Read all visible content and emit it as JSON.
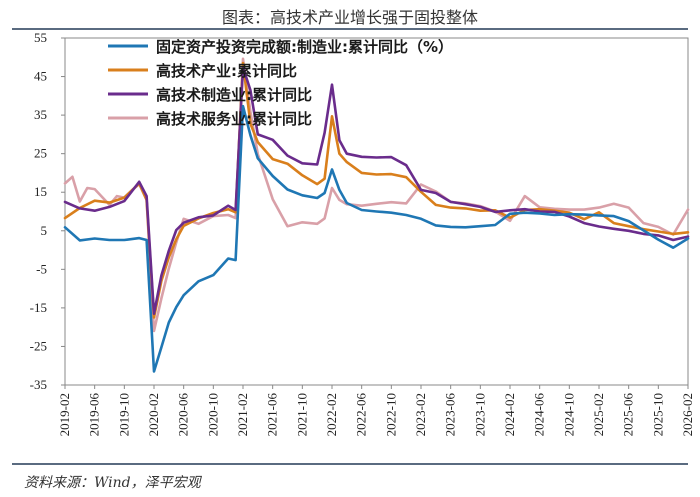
{
  "header": {
    "title": "图表：高技术产业增长强于固投整体"
  },
  "footer": {
    "source": "资料来源：Wind，泽平宏观"
  },
  "chart_data": {
    "type": "line",
    "ylim": [
      -35,
      55
    ],
    "yticks": [
      55,
      45,
      35,
      25,
      15,
      5,
      -5,
      -15,
      -25,
      -35
    ],
    "xlim": [
      "2019-02",
      "2026-02"
    ],
    "xticks": [
      "2019-02",
      "2019-06",
      "2019-10",
      "2020-02",
      "2020-06",
      "2020-10",
      "2021-02",
      "2021-06",
      "2021-10",
      "2022-02",
      "2022-06",
      "2022-10",
      "2023-02",
      "2023-06",
      "2023-10",
      "2024-02",
      "2024-06",
      "2024-10",
      "2025-02",
      "2025-06",
      "2025-10",
      "2026-02"
    ],
    "legend_position": "top-left",
    "grid": false,
    "series": [
      {
        "name": "固定资产投资完成额:制造业:累计同比（%）",
        "color": "#1f77b4",
        "x": [
          "2019-02",
          "2019-04",
          "2019-06",
          "2019-08",
          "2019-10",
          "2019-12",
          "2020-01",
          "2020-02",
          "2020-03",
          "2020-04",
          "2020-05",
          "2020-06",
          "2020-08",
          "2020-10",
          "2020-12",
          "2021-01",
          "2021-02",
          "2021-03",
          "2021-04",
          "2021-06",
          "2021-08",
          "2021-10",
          "2021-12",
          "2022-01",
          "2022-02",
          "2022-03",
          "2022-04",
          "2022-06",
          "2022-08",
          "2022-10",
          "2022-12",
          "2023-02",
          "2023-04",
          "2023-06",
          "2023-08",
          "2023-10",
          "2023-12",
          "2024-02",
          "2024-04",
          "2024-06",
          "2024-08",
          "2024-10",
          "2024-12",
          "2025-02",
          "2025-04",
          "2025-06",
          "2025-08",
          "2025-10",
          "2025-12",
          "2026-02"
        ],
        "values": [
          5.9,
          2.5,
          3.0,
          2.6,
          2.6,
          3.1,
          2.6,
          -31.5,
          -25.2,
          -18.8,
          -14.8,
          -11.7,
          -8.1,
          -6.5,
          -2.2,
          -2.6,
          37.3,
          29.8,
          23.8,
          19.2,
          15.7,
          14.2,
          13.5,
          14.8,
          20.9,
          15.6,
          12.2,
          10.4,
          10.0,
          9.7,
          9.1,
          8.1,
          6.4,
          6.0,
          5.9,
          6.2,
          6.5,
          9.4,
          9.7,
          9.5,
          9.1,
          9.3,
          9.2,
          9.0,
          8.8,
          7.5,
          5.1,
          2.7,
          0.6,
          3.0
        ]
      },
      {
        "name": "高技术产业:累计同比",
        "color": "#d97f1c",
        "x": [
          "2019-02",
          "2019-04",
          "2019-06",
          "2019-08",
          "2019-10",
          "2019-12",
          "2020-01",
          "2020-02",
          "2020-03",
          "2020-04",
          "2020-05",
          "2020-06",
          "2020-08",
          "2020-10",
          "2020-12",
          "2021-01",
          "2021-02",
          "2021-03",
          "2021-04",
          "2021-06",
          "2021-08",
          "2021-10",
          "2021-12",
          "2022-01",
          "2022-02",
          "2022-03",
          "2022-04",
          "2022-06",
          "2022-08",
          "2022-10",
          "2022-12",
          "2023-02",
          "2023-04",
          "2023-06",
          "2023-08",
          "2023-10",
          "2023-12",
          "2024-02",
          "2024-04",
          "2024-06",
          "2024-08",
          "2024-10",
          "2024-12",
          "2025-02",
          "2025-04",
          "2025-06",
          "2025-08",
          "2025-10",
          "2025-12",
          "2026-02"
        ],
        "values": [
          8.3,
          10.9,
          12.8,
          12.3,
          13.6,
          17.3,
          13.0,
          -17.5,
          -8.0,
          -1.9,
          2.8,
          6.3,
          8.2,
          9.6,
          10.6,
          9.8,
          48.5,
          32.8,
          28.0,
          23.6,
          22.4,
          19.4,
          17.1,
          18.5,
          34.7,
          25.0,
          22.8,
          20.0,
          19.6,
          19.7,
          18.9,
          15.1,
          11.7,
          11.0,
          10.8,
          10.2,
          10.3,
          8.4,
          10.4,
          10.6,
          10.2,
          9.7,
          8.0,
          9.8,
          7.0,
          6.2,
          5.4,
          4.8,
          4.2,
          4.6
        ]
      },
      {
        "name": "高技术制造业:累计同比",
        "color": "#6a2c8c",
        "x": [
          "2019-02",
          "2019-04",
          "2019-06",
          "2019-08",
          "2019-10",
          "2019-12",
          "2020-01",
          "2020-02",
          "2020-03",
          "2020-04",
          "2020-05",
          "2020-06",
          "2020-08",
          "2020-10",
          "2020-12",
          "2021-01",
          "2021-02",
          "2021-03",
          "2021-04",
          "2021-06",
          "2021-08",
          "2021-10",
          "2021-12",
          "2022-01",
          "2022-02",
          "2022-03",
          "2022-04",
          "2022-06",
          "2022-08",
          "2022-10",
          "2022-12",
          "2023-02",
          "2023-04",
          "2023-06",
          "2023-08",
          "2023-10",
          "2023-12",
          "2024-02",
          "2024-04",
          "2024-06",
          "2024-08",
          "2024-10",
          "2024-12",
          "2025-02",
          "2025-04",
          "2025-06",
          "2025-08",
          "2025-10",
          "2025-12",
          "2026-02"
        ],
        "values": [
          12.5,
          10.8,
          10.2,
          11.2,
          12.7,
          17.7,
          14.0,
          -16.5,
          -6.6,
          -0.2,
          5.2,
          7.1,
          8.5,
          9.0,
          11.5,
          10.4,
          47.4,
          41.5,
          30.0,
          28.6,
          24.5,
          22.5,
          22.2,
          30.4,
          42.9,
          28.5,
          25.0,
          24.2,
          24.0,
          24.1,
          22.0,
          15.6,
          14.8,
          12.5,
          11.9,
          11.2,
          9.9,
          10.3,
          10.6,
          10.0,
          9.9,
          8.7,
          7.0,
          6.1,
          5.5,
          5.0,
          4.2,
          3.8,
          2.6,
          3.5
        ]
      },
      {
        "name": "高技术服务业:累计同比",
        "color": "#d9a0a8",
        "x": [
          "2019-02",
          "2019-03",
          "2019-04",
          "2019-05",
          "2019-06",
          "2019-08",
          "2019-09",
          "2019-10",
          "2019-11",
          "2019-12",
          "2020-01",
          "2020-02",
          "2020-03",
          "2020-04",
          "2020-05",
          "2020-06",
          "2020-08",
          "2020-10",
          "2020-12",
          "2021-01",
          "2021-02",
          "2021-03",
          "2021-04",
          "2021-06",
          "2021-08",
          "2021-10",
          "2021-12",
          "2022-01",
          "2022-02",
          "2022-03",
          "2022-04",
          "2022-06",
          "2022-08",
          "2022-10",
          "2022-12",
          "2023-02",
          "2023-04",
          "2023-06",
          "2023-08",
          "2023-10",
          "2023-12",
          "2024-02",
          "2024-04",
          "2024-06",
          "2024-08",
          "2024-10",
          "2024-12",
          "2025-02",
          "2025-04",
          "2025-06",
          "2025-08",
          "2025-10",
          "2025-12",
          "2026-02"
        ],
        "values": [
          17.3,
          19.0,
          12.6,
          16.1,
          15.8,
          11.7,
          14.0,
          13.6,
          15.5,
          17.1,
          13.0,
          -21.0,
          -12.5,
          -4.8,
          2.0,
          8.1,
          6.8,
          8.8,
          9.1,
          8.3,
          49.6,
          35.9,
          24.9,
          13.2,
          6.2,
          7.2,
          6.8,
          8.2,
          16.1,
          13.0,
          11.9,
          11.5,
          12.0,
          12.4,
          12.1,
          17.0,
          15.2,
          12.5,
          12.1,
          11.4,
          10.0,
          7.6,
          14.0,
          11.1,
          10.7,
          10.5,
          10.5,
          11.0,
          12.0,
          11.0,
          7.0,
          6.0,
          4.0,
          10.5
        ]
      }
    ]
  }
}
